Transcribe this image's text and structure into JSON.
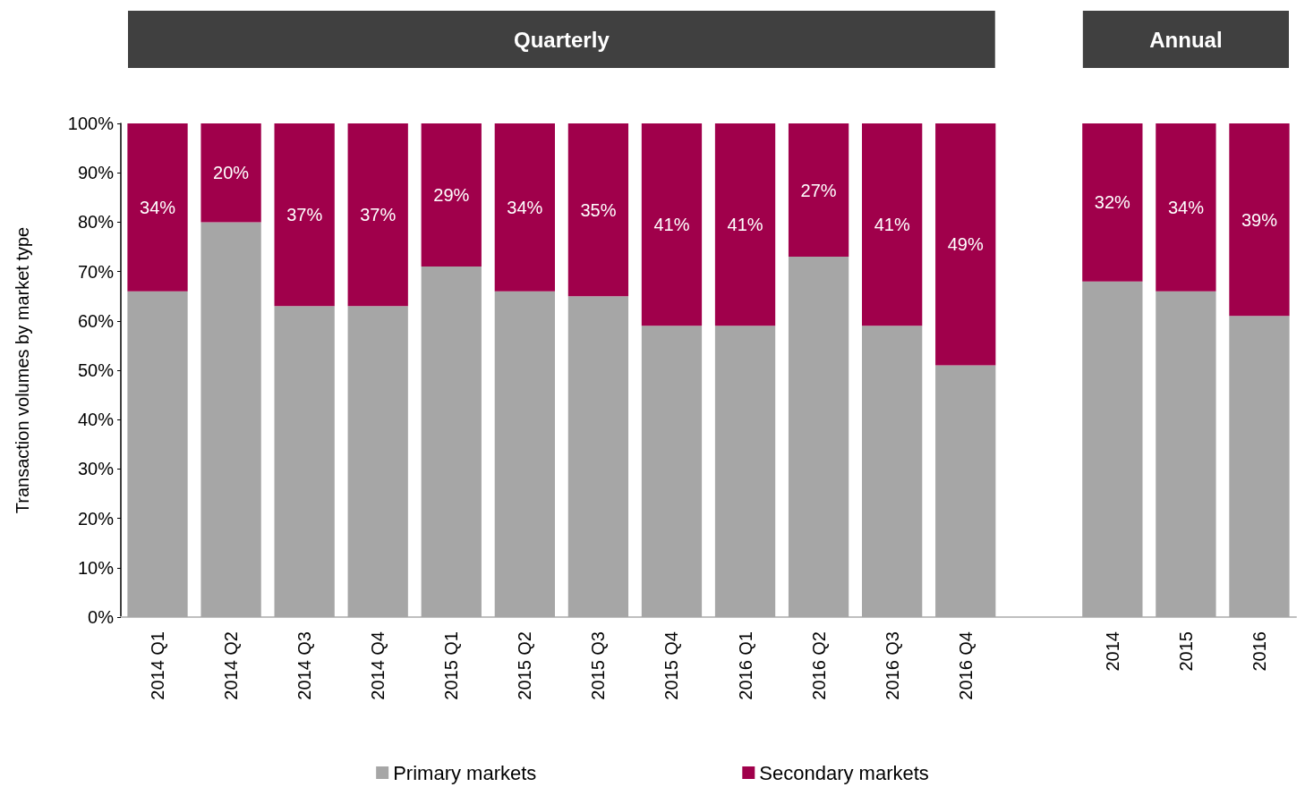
{
  "chart_data": {
    "type": "bar",
    "stacked": true,
    "ylabel": "Transaction volumes by market type",
    "categories": [
      "2014 Q1",
      "2014 Q2",
      "2014 Q3",
      "2014 Q4",
      "2015 Q1",
      "2015 Q2",
      "2015 Q3",
      "2015 Q4",
      "2016 Q1",
      "2016 Q2",
      "2016 Q3",
      "2016 Q4",
      null,
      "2014",
      "2015",
      "2016"
    ],
    "series": [
      {
        "name": "Primary markets",
        "color": "#a6a6a6",
        "values": [
          66,
          80,
          63,
          63,
          71,
          66,
          65,
          59,
          59,
          73,
          59,
          51,
          null,
          68,
          66,
          61
        ]
      },
      {
        "name": "Secondary markets",
        "color": "#a0004b",
        "values": [
          34,
          20,
          37,
          37,
          29,
          34,
          35,
          41,
          41,
          27,
          41,
          49,
          null,
          32,
          34,
          39
        ],
        "value_labels": [
          "34%",
          "20%",
          "37%",
          "37%",
          "29%",
          "34%",
          "35%",
          "41%",
          "41%",
          "27%",
          "41%",
          "49%",
          null,
          "32%",
          "34%",
          "39%"
        ]
      }
    ],
    "ylim": [
      0,
      100
    ],
    "yticks": [
      {
        "value": 0,
        "label": "0%"
      },
      {
        "value": 10,
        "label": "10%"
      },
      {
        "value": 20,
        "label": "20%"
      },
      {
        "value": 30,
        "label": "30%"
      },
      {
        "value": 40,
        "label": "40%"
      },
      {
        "value": 50,
        "label": "50%"
      },
      {
        "value": 60,
        "label": "60%"
      },
      {
        "value": 70,
        "label": "70%"
      },
      {
        "value": 80,
        "label": "80%"
      },
      {
        "value": 90,
        "label": "90%"
      },
      {
        "value": 100,
        "label": "100%"
      }
    ],
    "annotations": [
      "Quarterly",
      "Annual"
    ],
    "grid": false,
    "legend": "bottom"
  }
}
